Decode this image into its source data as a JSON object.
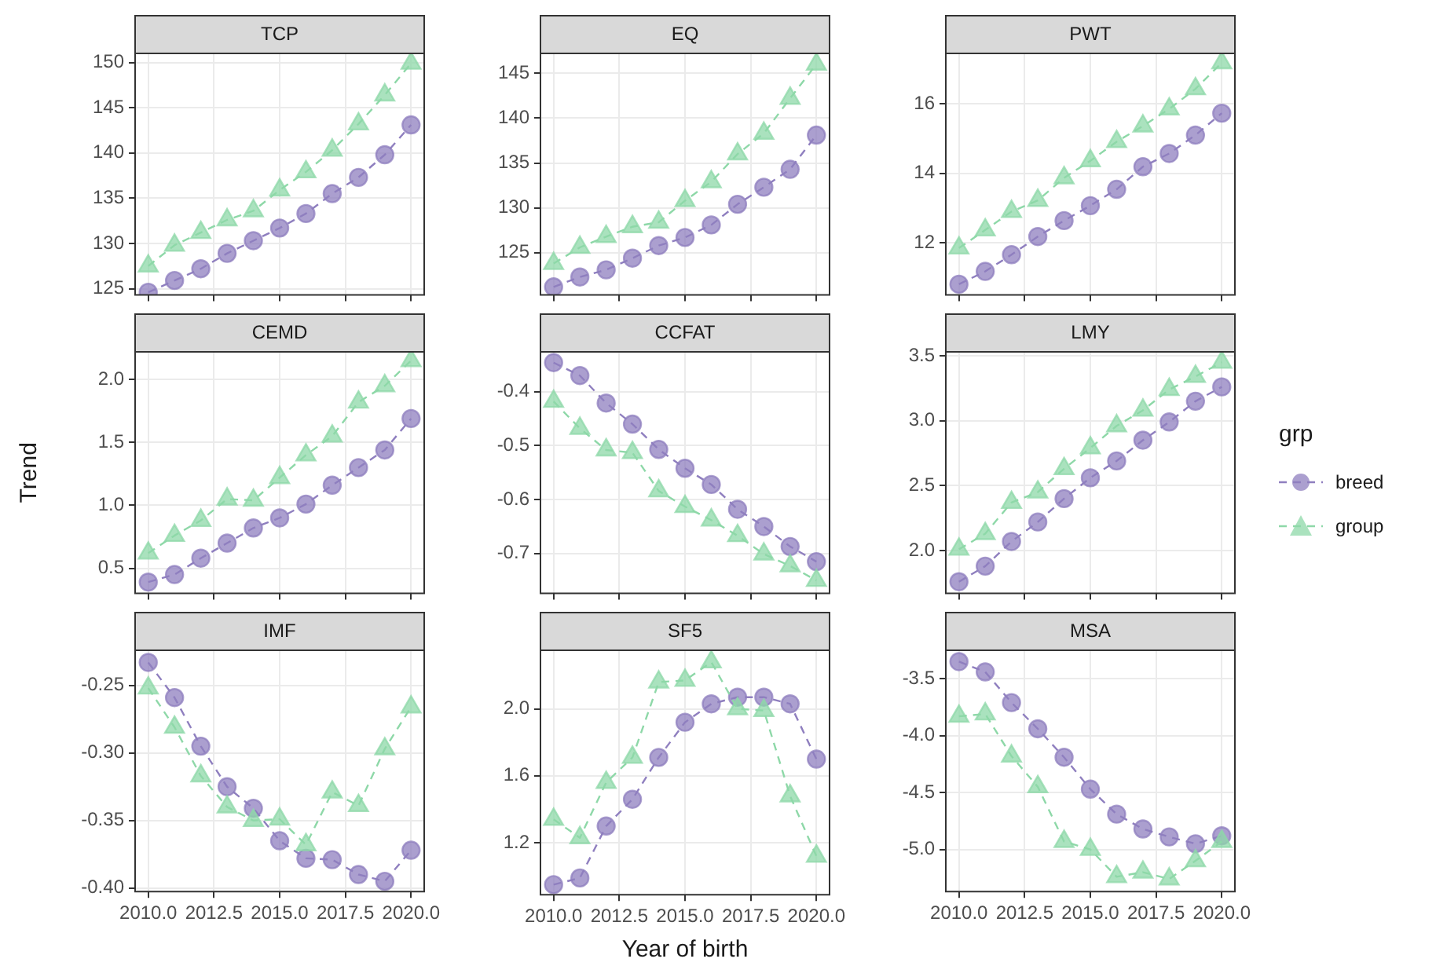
{
  "chart_data": [
    {
      "type": "line",
      "title": "TCP",
      "legend": "right",
      "legend_title": "grp",
      "x": [
        2010,
        2011,
        2012,
        2013,
        2014,
        2015,
        2016,
        2017,
        2018,
        2019,
        2020
      ],
      "xlim": [
        2009.5,
        2020.5
      ],
      "xticks": [
        {
          "value": 2010,
          "label": null
        },
        {
          "value": 2012.5,
          "label": null
        },
        {
          "value": 2015,
          "label": null
        },
        {
          "value": 2017.5,
          "label": null
        },
        {
          "value": 2020,
          "label": null
        }
      ],
      "ylim": [
        124.3,
        151
      ],
      "yticks": [
        125,
        130,
        135,
        140,
        145,
        150
      ],
      "grid": true,
      "tick_labels": "y",
      "line_style": "dashed",
      "series": [
        {
          "name": "breed",
          "color": "#8f7fbf",
          "marker": "circle",
          "values": [
            124.6,
            125.9,
            127.2,
            128.9,
            130.3,
            131.7,
            133.3,
            135.5,
            137.3,
            139.8,
            143.1
          ]
        },
        {
          "name": "group",
          "color": "#8ed8a8",
          "marker": "triangle",
          "values": [
            127.5,
            129.8,
            131.2,
            132.6,
            133.6,
            135.9,
            137.9,
            140.3,
            143.2,
            146.4,
            149.9
          ]
        }
      ]
    },
    {
      "type": "line",
      "title": "EQ",
      "legend": "right",
      "x": [
        2010,
        2011,
        2012,
        2013,
        2014,
        2015,
        2016,
        2017,
        2018,
        2019,
        2020
      ],
      "xlim": [
        2009.5,
        2020.5
      ],
      "xticks": [
        {
          "value": 2010,
          "label": null
        },
        {
          "value": 2012.5,
          "label": null
        },
        {
          "value": 2015,
          "label": null
        },
        {
          "value": 2017.5,
          "label": null
        },
        {
          "value": 2020,
          "label": null
        }
      ],
      "ylim": [
        120.3,
        147.2
      ],
      "yticks": [
        125,
        130,
        135,
        140,
        145
      ],
      "grid": true,
      "tick_labels": "y",
      "line_style": "dashed",
      "series": [
        {
          "color": "#8f7fbf",
          "marker": "circle",
          "values": [
            121.2,
            122.3,
            123.1,
            124.4,
            125.8,
            126.7,
            128.1,
            130.4,
            132.3,
            134.3,
            138.1
          ]
        },
        {
          "color": "#8ed8a8",
          "marker": "triangle",
          "values": [
            123.8,
            125.6,
            126.8,
            127.9,
            128.4,
            130.8,
            132.9,
            136.0,
            138.3,
            142.2,
            146.0
          ]
        }
      ]
    },
    {
      "type": "line",
      "title": "PWT",
      "legend": "right",
      "x": [
        2010,
        2011,
        2012,
        2013,
        2014,
        2015,
        2016,
        2017,
        2018,
        2019,
        2020
      ],
      "xlim": [
        2009.5,
        2020.5
      ],
      "xticks": [
        {
          "value": 2010,
          "label": null
        },
        {
          "value": 2012.5,
          "label": null
        },
        {
          "value": 2015,
          "label": null
        },
        {
          "value": 2017.5,
          "label": null
        },
        {
          "value": 2020,
          "label": null
        }
      ],
      "ylim": [
        10.5,
        17.45
      ],
      "yticks": [
        12,
        14,
        16
      ],
      "grid": true,
      "tick_labels": "y",
      "line_style": "dashed",
      "series": [
        {
          "color": "#8f7fbf",
          "marker": "circle",
          "values": [
            10.81,
            11.18,
            11.66,
            12.18,
            12.64,
            13.07,
            13.54,
            14.19,
            14.57,
            15.1,
            15.73
          ]
        },
        {
          "color": "#8ed8a8",
          "marker": "triangle",
          "values": [
            11.85,
            12.37,
            12.9,
            13.22,
            13.87,
            14.36,
            14.91,
            15.36,
            15.85,
            16.43,
            17.18
          ]
        }
      ]
    },
    {
      "type": "line",
      "title": "CEMD",
      "legend": "right",
      "ylabel": "Trend",
      "x": [
        2010,
        2011,
        2012,
        2013,
        2014,
        2015,
        2016,
        2017,
        2018,
        2019,
        2020
      ],
      "xlim": [
        2009.5,
        2020.5
      ],
      "xticks": [
        {
          "value": 2010,
          "label": null
        },
        {
          "value": 2012.5,
          "label": null
        },
        {
          "value": 2015,
          "label": null
        },
        {
          "value": 2017.5,
          "label": null
        },
        {
          "value": 2020,
          "label": null
        }
      ],
      "ylim": [
        0.3,
        2.22
      ],
      "yticks": [
        {
          "value": 0.5,
          "label": "0.5"
        },
        {
          "value": 1,
          "label": "1.0"
        },
        {
          "value": 1.5,
          "label": "1.5"
        },
        {
          "value": 2,
          "label": "2.0"
        }
      ],
      "grid": true,
      "tick_labels": "y",
      "line_style": "dashed",
      "series": [
        {
          "color": "#8f7fbf",
          "marker": "circle",
          "values": [
            0.39,
            0.45,
            0.58,
            0.7,
            0.82,
            0.9,
            1.01,
            1.16,
            1.3,
            1.44,
            1.69
          ]
        },
        {
          "color": "#8ed8a8",
          "marker": "triangle",
          "values": [
            0.62,
            0.76,
            0.88,
            1.05,
            1.04,
            1.22,
            1.4,
            1.55,
            1.82,
            1.95,
            2.15
          ]
        }
      ]
    },
    {
      "type": "line",
      "title": "CCFAT",
      "legend": "right",
      "x": [
        2010,
        2011,
        2012,
        2013,
        2014,
        2015,
        2016,
        2017,
        2018,
        2019,
        2020
      ],
      "xlim": [
        2009.5,
        2020.5
      ],
      "xticks": [
        {
          "value": 2010,
          "label": null
        },
        {
          "value": 2012.5,
          "label": null
        },
        {
          "value": 2015,
          "label": null
        },
        {
          "value": 2017.5,
          "label": null
        },
        {
          "value": 2020,
          "label": null
        }
      ],
      "ylim": [
        -0.774,
        -0.326
      ],
      "yticks": [
        -0.4,
        -0.5,
        -0.6,
        -0.7
      ],
      "grid": true,
      "tick_labels": "y",
      "line_style": "dashed",
      "series": [
        {
          "color": "#8f7fbf",
          "marker": "circle",
          "values": [
            -0.346,
            -0.37,
            -0.421,
            -0.46,
            -0.507,
            -0.542,
            -0.572,
            -0.618,
            -0.65,
            -0.687,
            -0.715
          ]
        },
        {
          "color": "#8ed8a8",
          "marker": "triangle",
          "values": [
            -0.418,
            -0.468,
            -0.508,
            -0.513,
            -0.584,
            -0.613,
            -0.638,
            -0.667,
            -0.701,
            -0.723,
            -0.75
          ]
        }
      ]
    },
    {
      "type": "line",
      "title": "LMY",
      "legend": "right",
      "x": [
        2010,
        2011,
        2012,
        2013,
        2014,
        2015,
        2016,
        2017,
        2018,
        2019,
        2020
      ],
      "xlim": [
        2009.5,
        2020.5
      ],
      "xticks": [
        {
          "value": 2010,
          "label": null
        },
        {
          "value": 2012.5,
          "label": null
        },
        {
          "value": 2015,
          "label": null
        },
        {
          "value": 2017.5,
          "label": null
        },
        {
          "value": 2020,
          "label": null
        }
      ],
      "ylim": [
        1.67,
        3.53
      ],
      "yticks": [
        {
          "value": 2,
          "label": "2.0"
        },
        {
          "value": 2.5,
          "label": "2.5"
        },
        {
          "value": 3,
          "label": "3.0"
        },
        {
          "value": 3.5,
          "label": "3.5"
        }
      ],
      "grid": true,
      "tick_labels": "y",
      "line_style": "dashed",
      "series": [
        {
          "color": "#8f7fbf",
          "marker": "circle",
          "values": [
            1.76,
            1.88,
            2.07,
            2.22,
            2.4,
            2.56,
            2.69,
            2.85,
            2.99,
            3.15,
            3.26
          ]
        },
        {
          "color": "#8ed8a8",
          "marker": "triangle",
          "values": [
            2.01,
            2.13,
            2.37,
            2.45,
            2.63,
            2.79,
            2.96,
            3.08,
            3.24,
            3.34,
            3.45
          ]
        }
      ]
    },
    {
      "type": "line",
      "title": "IMF",
      "legend": "right",
      "x": [
        2010,
        2011,
        2012,
        2013,
        2014,
        2015,
        2016,
        2017,
        2018,
        2019,
        2020
      ],
      "xlim": [
        2009.5,
        2020.5
      ],
      "xticks": [
        {
          "value": 2010,
          "label": "2010.0"
        },
        {
          "value": 2012.5,
          "label": "2012.5"
        },
        {
          "value": 2015,
          "label": "2015.0"
        },
        {
          "value": 2017.5,
          "label": "2017.5"
        },
        {
          "value": 2020,
          "label": "2020.0"
        }
      ],
      "ylim": [
        -0.4026,
        -0.224
      ],
      "yticks": [
        {
          "value": -0.25,
          "label": "-0.25"
        },
        {
          "value": -0.3,
          "label": "-0.30"
        },
        {
          "value": -0.35,
          "label": "-0.35"
        },
        {
          "value": -0.4,
          "label": "-0.40"
        }
      ],
      "grid": true,
      "line_style": "dashed",
      "series": [
        {
          "color": "#8f7fbf",
          "marker": "circle",
          "values": [
            -0.233,
            -0.259,
            -0.295,
            -0.325,
            -0.341,
            -0.365,
            -0.378,
            -0.379,
            -0.39,
            -0.395,
            -0.372
          ]
        },
        {
          "color": "#8ed8a8",
          "marker": "triangle",
          "values": [
            -0.252,
            -0.281,
            -0.317,
            -0.34,
            -0.35,
            -0.349,
            -0.368,
            -0.329,
            -0.339,
            -0.297,
            -0.266
          ]
        }
      ]
    },
    {
      "type": "line",
      "title": "SF5",
      "legend": "right",
      "xlabel": "Year of birth",
      "x": [
        2010,
        2011,
        2012,
        2013,
        2014,
        2015,
        2016,
        2017,
        2018,
        2019,
        2020
      ],
      "xlim": [
        2009.5,
        2020.5
      ],
      "xticks": [
        {
          "value": 2010,
          "label": "2010.0"
        },
        {
          "value": 2012.5,
          "label": "2012.5"
        },
        {
          "value": 2015,
          "label": "2015.0"
        },
        {
          "value": 2017.5,
          "label": "2017.5"
        },
        {
          "value": 2020,
          "label": "2020.0"
        }
      ],
      "ylim": [
        0.89,
        2.35
      ],
      "yticks": [
        {
          "value": 1.2,
          "label": "1.2"
        },
        {
          "value": 1.6,
          "label": "1.6"
        },
        {
          "value": 2,
          "label": "2.0"
        }
      ],
      "grid": true,
      "line_style": "dashed",
      "series": [
        {
          "color": "#8f7fbf",
          "marker": "circle",
          "values": [
            0.95,
            0.99,
            1.3,
            1.46,
            1.71,
            1.92,
            2.03,
            2.07,
            2.07,
            2.03,
            1.7
          ]
        },
        {
          "color": "#8ed8a8",
          "marker": "triangle",
          "values": [
            1.34,
            1.23,
            1.56,
            1.71,
            2.16,
            2.17,
            2.28,
            2.0,
            1.99,
            1.48,
            1.12
          ]
        }
      ]
    },
    {
      "type": "line",
      "title": "MSA",
      "legend": "right",
      "x": [
        2010,
        2011,
        2012,
        2013,
        2014,
        2015,
        2016,
        2017,
        2018,
        2019,
        2020
      ],
      "xlim": [
        2009.5,
        2020.5
      ],
      "xticks": [
        {
          "value": 2010,
          "label": "2010.0"
        },
        {
          "value": 2012.5,
          "label": "2012.5"
        },
        {
          "value": 2015,
          "label": "2015.0"
        },
        {
          "value": 2017.5,
          "label": "2017.5"
        },
        {
          "value": 2020,
          "label": "2020.0"
        }
      ],
      "ylim": [
        -5.37,
        -3.25
      ],
      "yticks": [
        {
          "value": -3.5,
          "label": "-3.5"
        },
        {
          "value": -4,
          "label": "-4.0"
        },
        {
          "value": -4.5,
          "label": "-4.5"
        },
        {
          "value": -5,
          "label": "-5.0"
        }
      ],
      "grid": true,
      "line_style": "dashed",
      "series": [
        {
          "color": "#8f7fbf",
          "marker": "circle",
          "values": [
            -3.35,
            -3.44,
            -3.71,
            -3.94,
            -4.19,
            -4.47,
            -4.69,
            -4.82,
            -4.89,
            -4.95,
            -4.88
          ]
        },
        {
          "color": "#8ed8a8",
          "marker": "triangle",
          "values": [
            -3.83,
            -3.81,
            -4.18,
            -4.45,
            -4.93,
            -5.0,
            -5.24,
            -5.2,
            -5.26,
            -5.1,
            -4.93
          ]
        }
      ]
    }
  ]
}
